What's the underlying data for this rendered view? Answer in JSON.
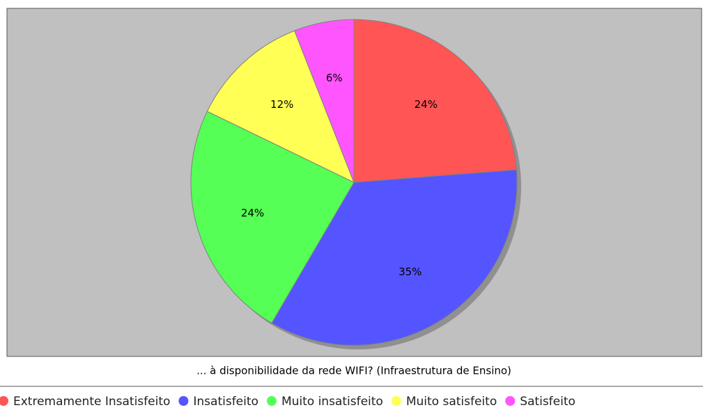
{
  "chart_data": {
    "type": "pie",
    "title": "... à disponibilidade da rede WIFI? (Infraestrutura de Ensino)",
    "categories": [
      "Extremamente Insatisfeito",
      "Insatisfeito",
      "Muito insatisfeito",
      "Muito satisfeito",
      "Satisfeito"
    ],
    "values": [
      24,
      35,
      24,
      12,
      6
    ],
    "value_labels": [
      "24%",
      "35%",
      "24%",
      "12%",
      "6%"
    ],
    "colors": [
      "#ff5555",
      "#5555ff",
      "#55ff55",
      "#ffff55",
      "#ff55ff"
    ],
    "legend": "bottom"
  }
}
